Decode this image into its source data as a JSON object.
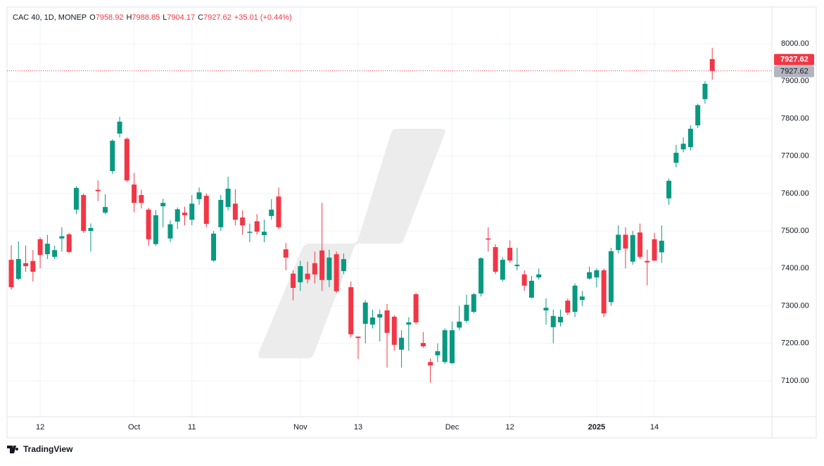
{
  "chart_data": {
    "type": "candlestick",
    "symbol": "CAC 40, 1D, MONEP",
    "ohlc_labels": [
      "O",
      "H",
      "L",
      "C"
    ],
    "change_label": "+35.01 (+0.44%)",
    "branding": "TradingView",
    "up_color": "#089981",
    "down_color": "#f23645",
    "categories": [
      null,
      null,
      null,
      null,
      "12",
      null,
      null,
      null,
      null,
      null,
      null,
      null,
      null,
      null,
      null,
      null,
      null,
      "Oct",
      null,
      null,
      null,
      null,
      null,
      null,
      null,
      "11",
      null,
      null,
      null,
      null,
      null,
      null,
      null,
      null,
      null,
      null,
      null,
      null,
      null,
      null,
      "Nov",
      null,
      null,
      null,
      null,
      null,
      null,
      null,
      "13",
      null,
      null,
      null,
      null,
      null,
      null,
      null,
      null,
      null,
      null,
      null,
      null,
      "Dec",
      null,
      null,
      null,
      null,
      null,
      null,
      null,
      "12",
      null,
      null,
      null,
      null,
      null,
      null,
      null,
      null,
      null,
      null,
      null,
      "2025",
      null,
      null,
      null,
      null,
      null,
      null,
      null,
      "14",
      null,
      null,
      null,
      null,
      null,
      null,
      null,
      null
    ],
    "open": [
      7423,
      7372,
      7414,
      7420,
      7478,
      7438,
      7431,
      7480,
      7491,
      7557,
      7596,
      7500,
      7610,
      7549,
      7660,
      7760,
      7746,
      7624,
      7596,
      7557,
      7465,
      7566,
      7480,
      7525,
      7549,
      7530,
      7585,
      7594,
      7421,
      7510,
      7564,
      7573,
      7536,
      7495,
      7526,
      7489,
      7540,
      7592,
      7451,
      7386,
      7363,
      7386,
      7414,
      7448,
      7369,
      7438,
      7393,
      7350,
      7218,
      7252,
      7250,
      7269,
      7288,
      7271,
      7183,
      7250,
      7331,
      7201,
      7150,
      7168,
      7150,
      7147,
      7242,
      7260,
      7284,
      7333,
      7480,
      7457,
      7370,
      7455,
      7406,
      7384,
      7322,
      7376,
      7288,
      7243,
      7256,
      7314,
      7284,
      7316,
      7373,
      7376,
      7395,
      7310,
      7449,
      7490,
      7418,
      7496,
      7420,
      7478,
      7443,
      7587,
      7682,
      7718,
      7724,
      7782,
      7852,
      7958.92
    ],
    "high": [
      7462,
      7472,
      7461,
      7449,
      7483,
      7490,
      7461,
      7510,
      7495,
      7620,
      7600,
      7520,
      7635,
      7598,
      7745,
      7805,
      7750,
      7655,
      7610,
      7562,
      7556,
      7586,
      7528,
      7563,
      7565,
      7596,
      7616,
      7600,
      7500,
      7596,
      7645,
      7612,
      7555,
      7520,
      7545,
      7530,
      7585,
      7616,
      7468,
      7395,
      7420,
      7418,
      7445,
      7575,
      7450,
      7445,
      7440,
      7365,
      7218,
      7315,
      7290,
      7290,
      7305,
      7275,
      7235,
      7270,
      7335,
      7230,
      7160,
      7200,
      7240,
      7258,
      7300,
      7330,
      7335,
      7430,
      7510,
      7465,
      7430,
      7475,
      7455,
      7395,
      7380,
      7400,
      7320,
      7290,
      7290,
      7320,
      7360,
      7340,
      7405,
      7400,
      7400,
      7455,
      7515,
      7510,
      7500,
      7520,
      7450,
      7495,
      7515,
      7640,
      7730,
      7750,
      7782,
      7840,
      7900,
      7988.85
    ],
    "low": [
      7343,
      7369,
      7391,
      7365,
      7400,
      7425,
      7425,
      7445,
      7440,
      7545,
      7495,
      7445,
      7580,
      7545,
      7652,
      7750,
      7631,
      7550,
      7560,
      7460,
      7460,
      7510,
      7470,
      7505,
      7515,
      7515,
      7570,
      7510,
      7418,
      7500,
      7555,
      7515,
      7490,
      7470,
      7490,
      7470,
      7530,
      7505,
      7395,
      7315,
      7340,
      7360,
      7360,
      7340,
      7350,
      7335,
      7385,
      7216,
      7158,
      7200,
      7240,
      7205,
      7135,
      7180,
      7135,
      7180,
      7250,
      7188,
      7095,
      7150,
      7145,
      7145,
      7235,
      7255,
      7280,
      7325,
      7445,
      7385,
      7365,
      7415,
      7395,
      7340,
      7320,
      7370,
      7250,
      7200,
      7245,
      7275,
      7270,
      7300,
      7370,
      7350,
      7270,
      7300,
      7440,
      7400,
      7410,
      7425,
      7355,
      7420,
      7415,
      7570,
      7670,
      7710,
      7715,
      7775,
      7840,
      7904.17
    ],
    "close": [
      7350,
      7425,
      7406,
      7391,
      7436,
      7466,
      7449,
      7486,
      7444,
      7615,
      7500,
      7508,
      7606,
      7564,
      7741,
      7792,
      7635,
      7575,
      7575,
      7478,
      7542,
      7575,
      7518,
      7558,
      7542,
      7573,
      7603,
      7519,
      7493,
      7583,
      7613,
      7530,
      7515,
      7498,
      7498,
      7498,
      7557,
      7510,
      7429,
      7348,
      7406,
      7371,
      7384,
      7369,
      7429,
      7339,
      7425,
      7224,
      7214,
      7309,
      7269,
      7278,
      7228,
      7196,
      7215,
      7256,
      7256,
      7192,
      7141,
      7179,
      7235,
      7235,
      7258,
      7303,
      7331,
      7427,
      7477,
      7391,
      7423,
      7421,
      7410,
      7354,
      7367,
      7384,
      7295,
      7273,
      7271,
      7282,
      7354,
      7325,
      7390,
      7395,
      7280,
      7446,
      7490,
      7453,
      7489,
      7431,
      7416,
      7421,
      7474,
      7634,
      7709,
      7733,
      7773,
      7836,
      7893,
      7927.62
    ],
    "ylim": [
      7004,
      8098
    ],
    "yticks": [
      {
        "value": 7100,
        "label": "7100.00"
      },
      {
        "value": 7200,
        "label": "7200.00"
      },
      {
        "value": 7300,
        "label": "7300.00"
      },
      {
        "value": 7400,
        "label": "7400.00"
      },
      {
        "value": 7500,
        "label": "7500.00"
      },
      {
        "value": 7600,
        "label": "7600.00"
      },
      {
        "value": 7700,
        "label": "7700.00"
      },
      {
        "value": 7800,
        "label": "7800.00"
      },
      {
        "value": 7900,
        "label": "7900.00"
      },
      {
        "value": 8000,
        "label": "8000.00"
      }
    ],
    "grid": true
  }
}
